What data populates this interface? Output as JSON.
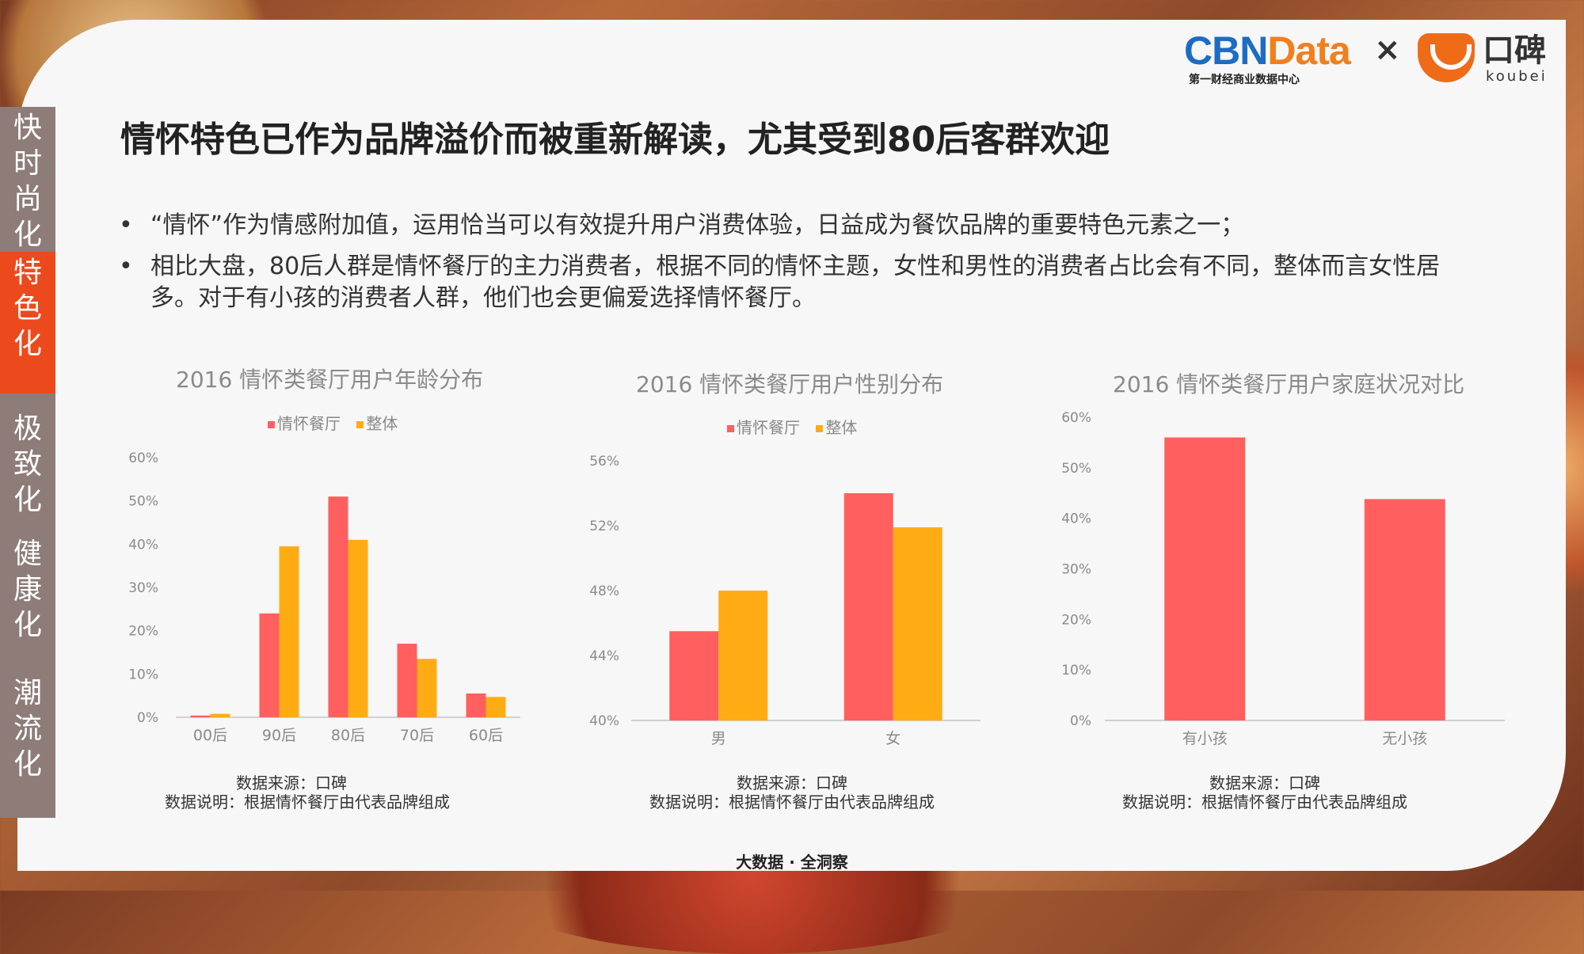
{
  "sidenav": [
    {
      "label": [
        "快",
        "时",
        "尚",
        "化"
      ],
      "active": false
    },
    {
      "label": [
        "特",
        "色",
        "化"
      ],
      "active": true
    },
    {
      "label": [
        "极",
        "致",
        "化"
      ],
      "active": false
    },
    {
      "label": [
        "健",
        "康",
        "化"
      ],
      "active": false
    },
    {
      "label": [
        "潮",
        "流",
        "化"
      ],
      "active": false
    }
  ],
  "logo": {
    "cbn_main_a": "CBN",
    "cbn_main_b": "Data",
    "cbn_sub": "第一财经商业数据中心",
    "times": "×",
    "koubei_cn": "口碑",
    "koubei_en": "koubei"
  },
  "title": "情怀特色已作为品牌溢价而被重新解读，尤其受到80后客群欢迎",
  "bullets": [
    "“情怀”作为情感附加值，运用恰当可以有效提升用户消费体验，日益成为餐饮品牌的重要特色元素之一；",
    "相比大盘，80后人群是情怀餐厅的主力消费者，根据不同的情怀主题，女性和男性的消费者占比会有不同，整体而言女性居多。对于有小孩的消费者人群，他们也会更偏爱选择情怀餐厅。"
  ],
  "bullet_marker": "•",
  "source": {
    "line1": "数据来源：口碑",
    "line2": "数据说明：根据情怀餐厅由代表品牌组成"
  },
  "footer": "大数据 · 全洞察",
  "colors": {
    "red": "#ff5f5f",
    "orange": "#ffac14"
  },
  "chart_data": [
    {
      "type": "bar",
      "title": "2016 情怀类餐厅用户年龄分布",
      "categories": [
        "00后",
        "90后",
        "80后",
        "70后",
        "60后"
      ],
      "series": [
        {
          "name": "情怀餐厅",
          "values": [
            0.4,
            24,
            51,
            17,
            5.5
          ]
        },
        {
          "name": "整体",
          "values": [
            0.8,
            39.5,
            41,
            13.5,
            4.7
          ]
        }
      ],
      "ylim": [
        0,
        60
      ],
      "yticks": [
        "0%",
        "10%",
        "20%",
        "30%",
        "40%",
        "50%",
        "60%"
      ],
      "legend": "top"
    },
    {
      "type": "bar",
      "title": "2016 情怀类餐厅用户性别分布",
      "categories": [
        "男",
        "女"
      ],
      "series": [
        {
          "name": "情怀餐厅",
          "values": [
            45.5,
            54
          ]
        },
        {
          "name": "整体",
          "values": [
            48,
            51.9
          ]
        }
      ],
      "ylim": [
        40,
        56
      ],
      "yticks": [
        "40%",
        "44%",
        "48%",
        "52%",
        "56%"
      ],
      "legend": "top"
    },
    {
      "type": "bar",
      "title": "2016 情怀类餐厅用户家庭状况对比",
      "categories": [
        "有小孩",
        "无小孩"
      ],
      "series": [
        {
          "values": [
            56,
            43.8
          ]
        }
      ],
      "ylim": [
        0,
        60
      ],
      "yticks": [
        "0%",
        "10%",
        "20%",
        "30%",
        "40%",
        "50%",
        "60%"
      ],
      "legend": "none"
    }
  ]
}
